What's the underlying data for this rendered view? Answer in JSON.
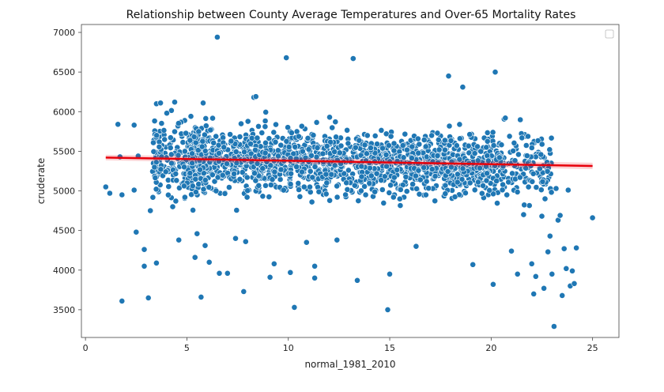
{
  "chart_data": {
    "type": "scatter",
    "title": "Relationship between County Average Temperatures and Over-65 Mortality Rates",
    "xlabel": "normal_1981_2010",
    "ylabel": "cruderate",
    "xlim": [
      -0.2,
      26.3
    ],
    "ylim": [
      3150,
      7100
    ],
    "xticks": [
      0,
      5,
      10,
      15,
      20,
      25
    ],
    "yticks": [
      3500,
      4000,
      4500,
      5000,
      5500,
      6000,
      6500,
      7000
    ],
    "legend_position": "top-right",
    "grid": false,
    "point_color": "#1f77b4",
    "point_edge_color": "#ffffff",
    "regression_color": "#e8000b",
    "regression_line": {
      "x": [
        1.0,
        25.0
      ],
      "y": [
        5420,
        5315
      ]
    },
    "cluster_point_count": 1900,
    "series": [
      {
        "points": [
          [
            1.0,
            5050
          ],
          [
            1.2,
            4970
          ],
          [
            1.6,
            5840
          ],
          [
            1.7,
            5430
          ],
          [
            1.8,
            4950
          ],
          [
            1.8,
            3610
          ],
          [
            2.4,
            5830
          ],
          [
            2.4,
            5010
          ],
          [
            2.5,
            4480
          ],
          [
            2.6,
            5440
          ],
          [
            2.9,
            4260
          ],
          [
            2.9,
            4050
          ],
          [
            3.1,
            3650
          ],
          [
            3.2,
            4750
          ],
          [
            3.4,
            5300
          ],
          [
            3.5,
            4090
          ],
          [
            3.5,
            6100
          ],
          [
            3.7,
            6110
          ],
          [
            3.9,
            5650
          ],
          [
            4.3,
            4800
          ],
          [
            4.4,
            6120
          ],
          [
            4.6,
            4380
          ],
          [
            4.9,
            4920
          ],
          [
            4.9,
            5500
          ],
          [
            5.4,
            4160
          ],
          [
            5.5,
            4460
          ],
          [
            5.7,
            3660
          ],
          [
            5.8,
            6110
          ],
          [
            5.9,
            4310
          ],
          [
            6.1,
            4100
          ],
          [
            6.5,
            6940
          ],
          [
            6.6,
            3960
          ],
          [
            7.0,
            3960
          ],
          [
            7.4,
            4400
          ],
          [
            7.8,
            3730
          ],
          [
            7.9,
            4360
          ],
          [
            8.3,
            6180
          ],
          [
            8.4,
            6190
          ],
          [
            9.1,
            3910
          ],
          [
            9.3,
            4080
          ],
          [
            9.9,
            6680
          ],
          [
            10.1,
            3970
          ],
          [
            10.3,
            3530
          ],
          [
            10.9,
            4350
          ],
          [
            11.3,
            4050
          ],
          [
            11.3,
            3900
          ],
          [
            12.4,
            4380
          ],
          [
            13.2,
            6670
          ],
          [
            13.4,
            3870
          ],
          [
            14.9,
            3500
          ],
          [
            15.0,
            3950
          ],
          [
            16.3,
            4300
          ],
          [
            17.9,
            6450
          ],
          [
            18.6,
            6310
          ],
          [
            19.1,
            4070
          ],
          [
            20.1,
            3820
          ],
          [
            20.2,
            6500
          ],
          [
            20.7,
            5920
          ],
          [
            21.0,
            4240
          ],
          [
            21.3,
            3950
          ],
          [
            21.6,
            4700
          ],
          [
            22.0,
            4080
          ],
          [
            22.1,
            3700
          ],
          [
            22.2,
            3920
          ],
          [
            22.4,
            5280
          ],
          [
            22.5,
            4680
          ],
          [
            22.6,
            3770
          ],
          [
            22.8,
            4230
          ],
          [
            22.9,
            4430
          ],
          [
            23.0,
            3950
          ],
          [
            23.1,
            3290
          ],
          [
            23.2,
            5030
          ],
          [
            23.3,
            4630
          ],
          [
            23.4,
            4690
          ],
          [
            23.5,
            3680
          ],
          [
            23.6,
            4270
          ],
          [
            23.7,
            4020
          ],
          [
            23.8,
            5010
          ],
          [
            23.9,
            3800
          ],
          [
            24.0,
            3990
          ],
          [
            24.1,
            3830
          ],
          [
            24.2,
            4280
          ],
          [
            25.0,
            4660
          ]
        ]
      }
    ]
  }
}
